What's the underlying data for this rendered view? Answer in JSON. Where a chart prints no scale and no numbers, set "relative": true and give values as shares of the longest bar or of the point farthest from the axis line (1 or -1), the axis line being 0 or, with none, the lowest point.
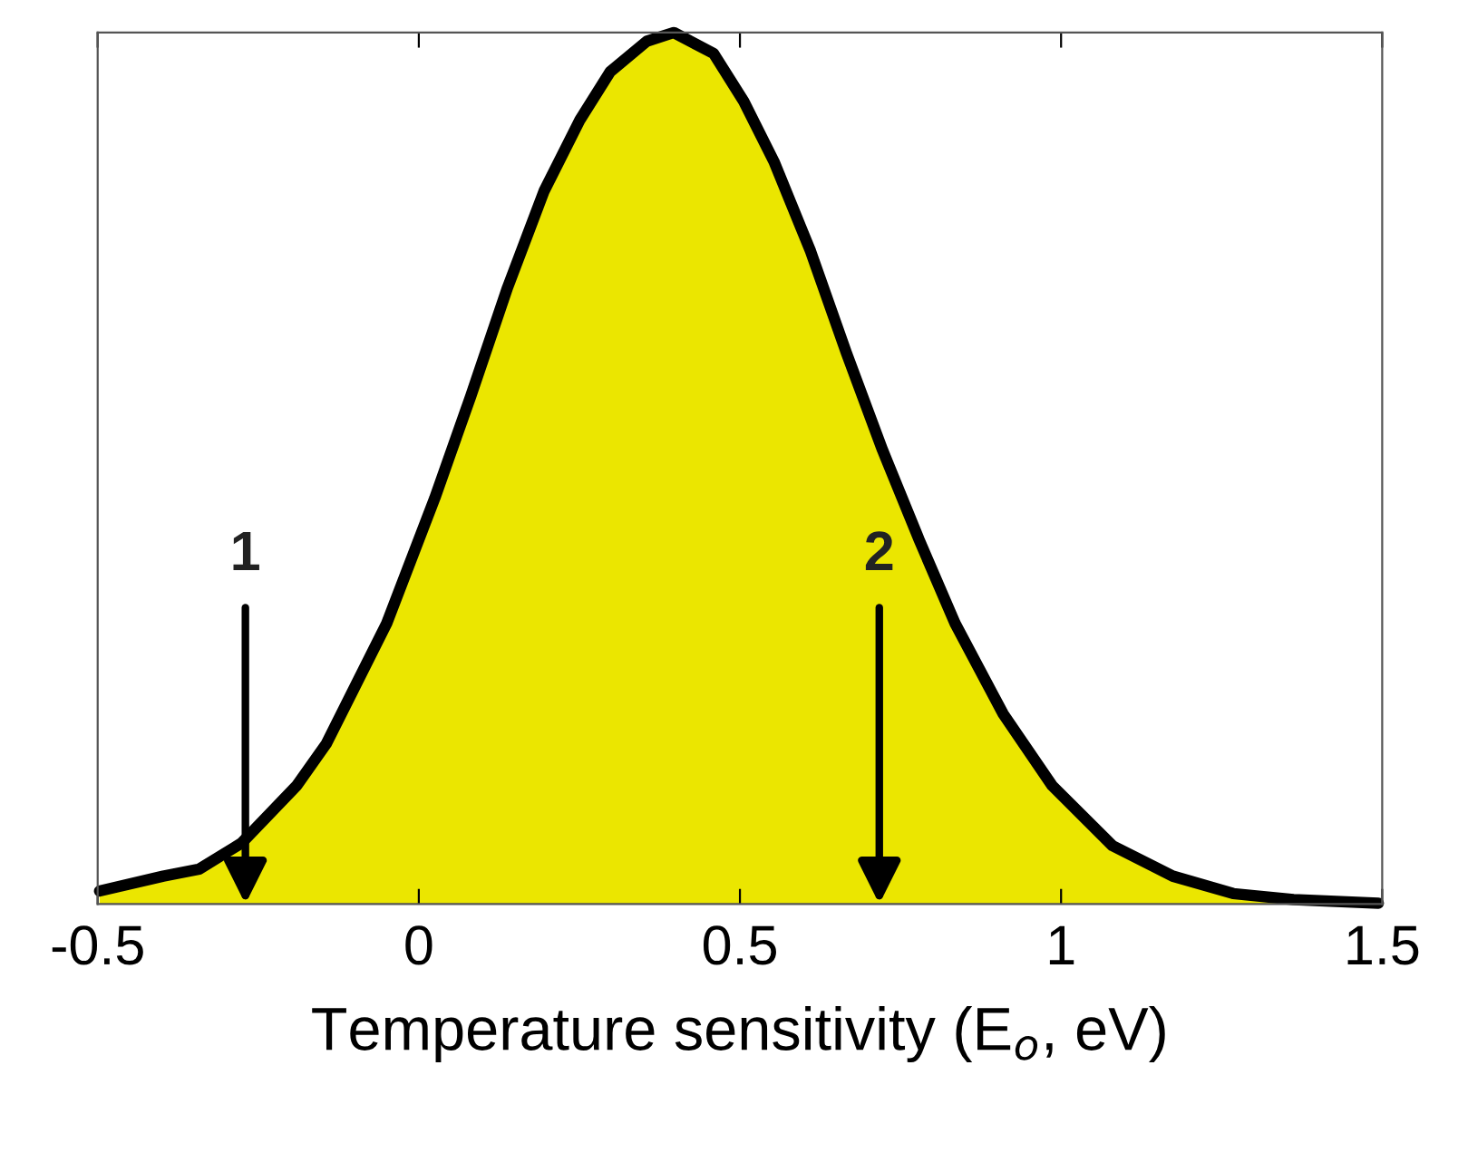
{
  "chart_data": {
    "type": "area",
    "relative": true,
    "xlabel": "Temperature sensitivity (E$_{o}$, eV)",
    "x": [
      -0.497,
      -0.398,
      -0.342,
      -0.276,
      -0.19,
      -0.144,
      -0.05,
      0.025,
      0.081,
      0.138,
      0.195,
      0.251,
      0.298,
      0.355,
      0.397,
      0.459,
      0.506,
      0.553,
      0.61,
      0.666,
      0.722,
      0.779,
      0.835,
      0.91,
      0.986,
      1.08,
      1.174,
      1.268,
      1.362,
      1.494
    ],
    "series": [
      {
        "color": "#ebe600",
        "values": [
          0.015,
          0.032,
          0.04,
          0.07,
          0.136,
          0.184,
          0.322,
          0.466,
          0.583,
          0.707,
          0.818,
          0.9,
          0.955,
          0.99,
          1.0,
          0.976,
          0.921,
          0.852,
          0.749,
          0.632,
          0.521,
          0.418,
          0.322,
          0.218,
          0.136,
          0.067,
          0.032,
          0.012,
          0.005,
          0.001
        ]
      }
    ],
    "xlim": [
      -0.5,
      1.5
    ],
    "xticks": [
      -0.5,
      0,
      0.5,
      1,
      1.5
    ],
    "annotations": [
      {
        "text": "1",
        "x": -0.27
      },
      {
        "text": "2",
        "x": 0.717
      }
    ],
    "grid": false
  }
}
